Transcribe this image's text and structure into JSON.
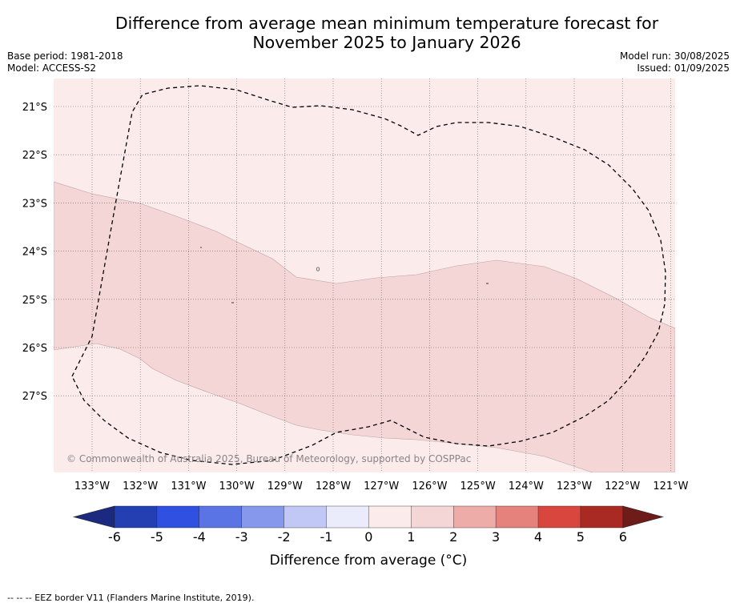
{
  "header": {
    "title_line1": "Difference from average mean minimum temperature forecast for",
    "title_line2": "November 2025 to January 2026",
    "base_period": "Base period: 1981-2018",
    "model": "Model: ACCESS-S2",
    "model_run": "Model run: 30/08/2025",
    "issued": "Issued: 01/09/2025"
  },
  "map": {
    "lon_ticks": [
      "133°W",
      "132°W",
      "131°W",
      "130°W",
      "129°W",
      "128°W",
      "127°W",
      "126°W",
      "125°W",
      "124°W",
      "123°W",
      "122°W",
      "121°W"
    ],
    "lat_ticks": [
      "21°S",
      "22°S",
      "23°S",
      "24°S",
      "25°S",
      "26°S",
      "27°S"
    ],
    "copyright": "© Commonwealth of Australia 2025, Bureau of Meteorology, supported by COSPPac",
    "anomaly_bands": [
      {
        "label": "0 to 1",
        "color": "#fbeceb"
      },
      {
        "label": "1 to 2",
        "color": "#f5d6d6"
      }
    ]
  },
  "colorbar": {
    "tick_labels": [
      "-6",
      "-5",
      "-4",
      "-3",
      "-2",
      "-1",
      "0",
      "1",
      "2",
      "3",
      "4",
      "5",
      "6"
    ],
    "colors": [
      "#1b2a80",
      "#243fb2",
      "#2f50e0",
      "#5a74e6",
      "#8598ec",
      "#c2c8f6",
      "#eaecfb",
      "#fbeceb",
      "#f5d6d6",
      "#eeaca8",
      "#e6827c",
      "#d8463d",
      "#a82a23",
      "#6e1c1a"
    ],
    "label": "Difference from average (°C)"
  },
  "legend": {
    "eez_text": "--  --  -- EEZ border V11 (Flanders Marine Institute, 2019)."
  }
}
